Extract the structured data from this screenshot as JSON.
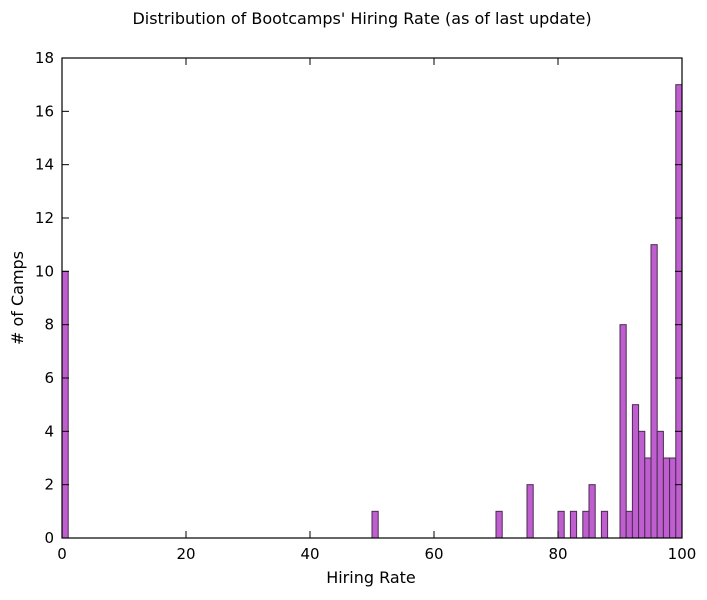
{
  "chart_data": {
    "type": "bar",
    "title": "Distribution of Bootcamps' Hiring Rate (as of last update)",
    "xlabel": "Hiring Rate",
    "ylabel": "# of Camps",
    "xlim": [
      0,
      100
    ],
    "ylim": [
      0,
      18
    ],
    "xticks": [
      0,
      20,
      40,
      60,
      80,
      100
    ],
    "yticks": [
      0,
      2,
      4,
      6,
      8,
      10,
      12,
      14,
      16,
      18
    ],
    "bin_width": 1,
    "grid": false,
    "legend": "none",
    "bar_color": "#bf5fcf",
    "bar_edge_color": "#4a2a52",
    "bins": [
      {
        "x": 0,
        "count": 10
      },
      {
        "x": 50,
        "count": 1
      },
      {
        "x": 70,
        "count": 1
      },
      {
        "x": 75,
        "count": 2
      },
      {
        "x": 80,
        "count": 1
      },
      {
        "x": 82,
        "count": 1
      },
      {
        "x": 84,
        "count": 1
      },
      {
        "x": 85,
        "count": 2
      },
      {
        "x": 87,
        "count": 1
      },
      {
        "x": 90,
        "count": 8
      },
      {
        "x": 91,
        "count": 1
      },
      {
        "x": 92,
        "count": 5
      },
      {
        "x": 93,
        "count": 4
      },
      {
        "x": 94,
        "count": 3
      },
      {
        "x": 95,
        "count": 11
      },
      {
        "x": 96,
        "count": 4
      },
      {
        "x": 97,
        "count": 3
      },
      {
        "x": 98,
        "count": 3
      },
      {
        "x": 99,
        "count": 17
      }
    ]
  }
}
